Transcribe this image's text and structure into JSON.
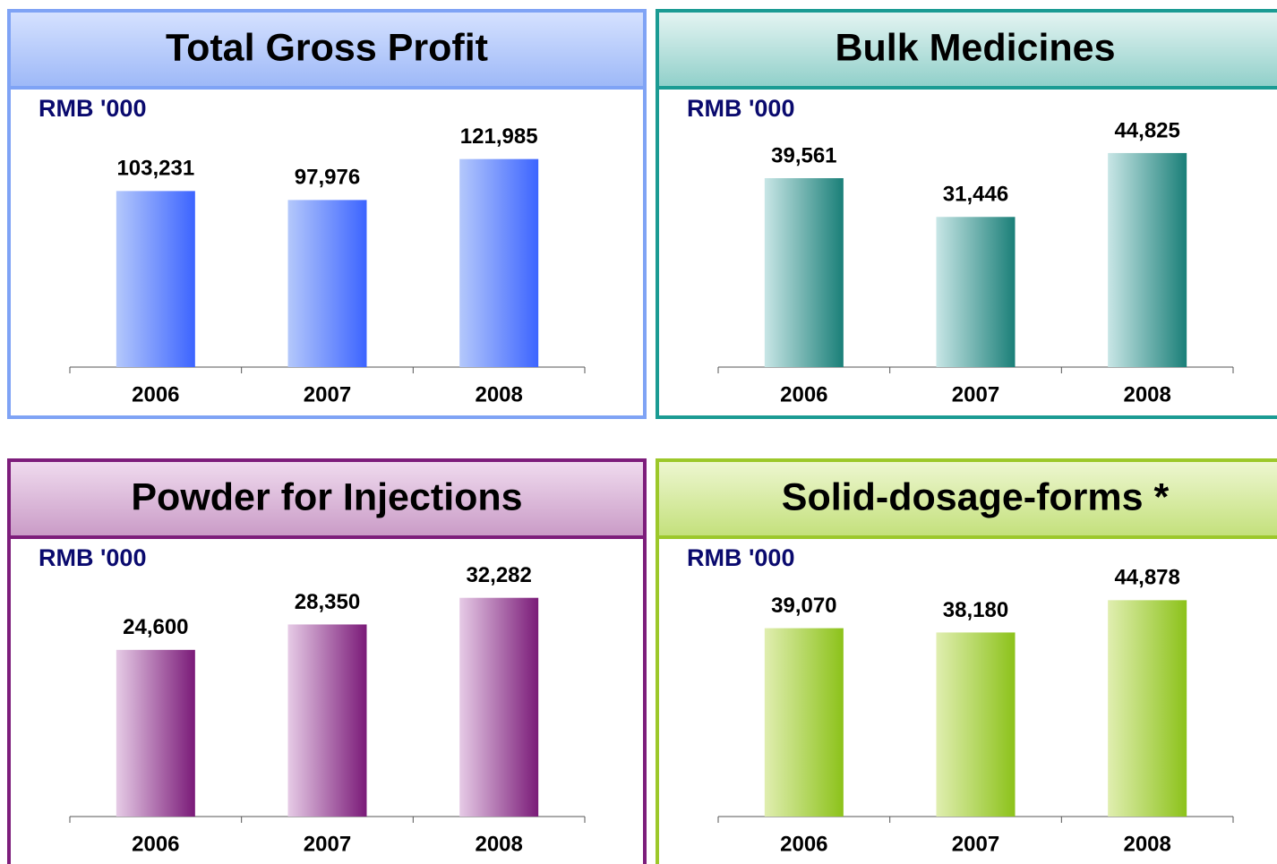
{
  "chart_data": [
    {
      "type": "bar",
      "title": "Total Gross Profit",
      "y_label": "RMB '000",
      "categories": [
        "2006",
        "2007",
        "2008"
      ],
      "values": [
        103231,
        97976,
        121985
      ],
      "value_labels": [
        "103,231",
        "97,976",
        "121,985"
      ],
      "ylim": [
        0,
        147000
      ],
      "colors": [
        "#b4c8fb",
        "#3c64ff"
      ],
      "theme_color": "#7fa3f5",
      "header_colors": [
        "#d6e2ff",
        "#9db8f7"
      ]
    },
    {
      "type": "bar",
      "title": "Bulk Medicines",
      "y_label": "RMB '000",
      "categories": [
        "2006",
        "2007",
        "2008"
      ],
      "values": [
        39561,
        31446,
        44825
      ],
      "value_labels": [
        "39,561",
        "31,446",
        "44,825"
      ],
      "ylim": [
        0,
        52500
      ],
      "colors": [
        "#c8e6e6",
        "#1a7f78"
      ],
      "theme_color": "#1b9b93",
      "header_colors": [
        "#e6f5f3",
        "#8fcfc9"
      ]
    },
    {
      "type": "bar",
      "title": "Powder for Injections",
      "y_label": "RMB '000",
      "categories": [
        "2006",
        "2007",
        "2008"
      ],
      "values": [
        24600,
        28350,
        32282
      ],
      "value_labels": [
        "24,600",
        "28,350",
        "32,282"
      ],
      "ylim": [
        0,
        37000
      ],
      "colors": [
        "#e6cbe6",
        "#7a1a78"
      ],
      "theme_color": "#7d1d7b",
      "header_colors": [
        "#f0dcef",
        "#c99ac6"
      ]
    },
    {
      "type": "bar",
      "title": "Solid-dosage-forms *",
      "y_label": "RMB '000",
      "categories": [
        "2006",
        "2007",
        "2008"
      ],
      "values": [
        39070,
        38180,
        44878
      ],
      "value_labels": [
        "39,070",
        "38,180",
        "44,878"
      ],
      "ylim": [
        0,
        52000
      ],
      "colors": [
        "#e0eeb0",
        "#8cc21a"
      ],
      "theme_color": "#9cc82a",
      "header_colors": [
        "#eef7d2",
        "#c3e07a"
      ]
    }
  ]
}
